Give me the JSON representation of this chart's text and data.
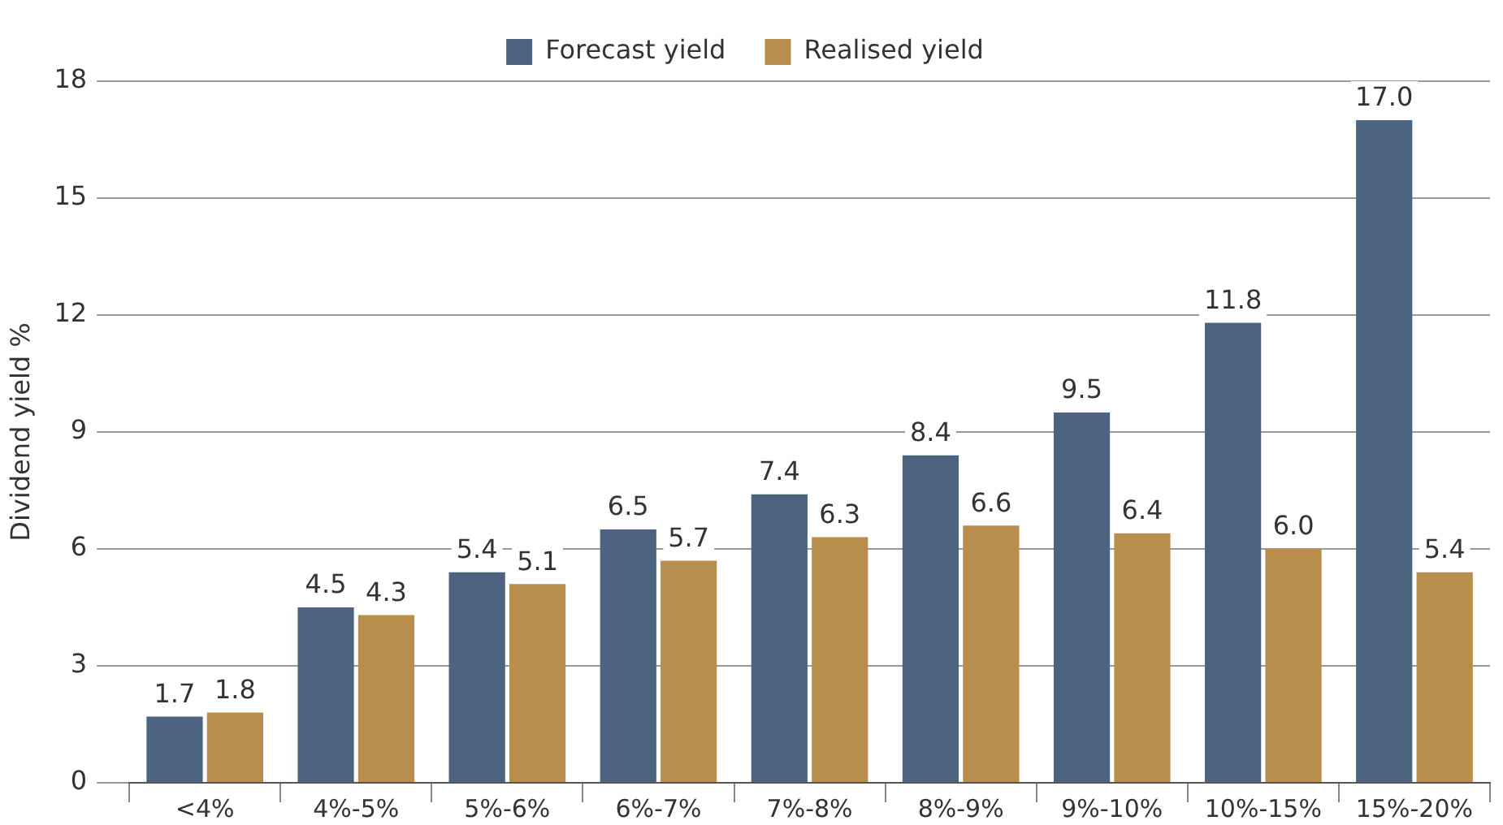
{
  "chart_data": {
    "type": "bar",
    "ylabel": "Dividend yield %",
    "categories": [
      "<4%",
      "4%-5%",
      "5%-6%",
      "6%-7%",
      "7%-8%",
      "8%-9%",
      "9%-10%",
      "10%-15%",
      "15%-20%"
    ],
    "series": [
      {
        "name": "Forecast yield",
        "color": "#4c6480",
        "values": [
          1.7,
          4.5,
          5.4,
          6.5,
          7.4,
          8.4,
          9.5,
          11.8,
          17.0
        ],
        "value_labels": [
          "1.7",
          "4.5",
          "5.4",
          "6.5",
          "7.4",
          "8.4",
          "9.5",
          "11.8",
          "17.0"
        ]
      },
      {
        "name": "Realised yield",
        "color": "#b98d4c",
        "values": [
          1.8,
          4.3,
          5.1,
          5.7,
          6.3,
          6.6,
          6.4,
          6.0,
          5.4
        ],
        "value_labels": [
          "1.8",
          "4.3",
          "5.1",
          "5.7",
          "6.3",
          "6.6",
          "6.4",
          "6.0",
          "5.4"
        ]
      }
    ],
    "ylim": [
      0,
      18
    ],
    "yticks": [
      0,
      3,
      6,
      9,
      12,
      15,
      18
    ],
    "grid": "y",
    "legend": "top"
  }
}
